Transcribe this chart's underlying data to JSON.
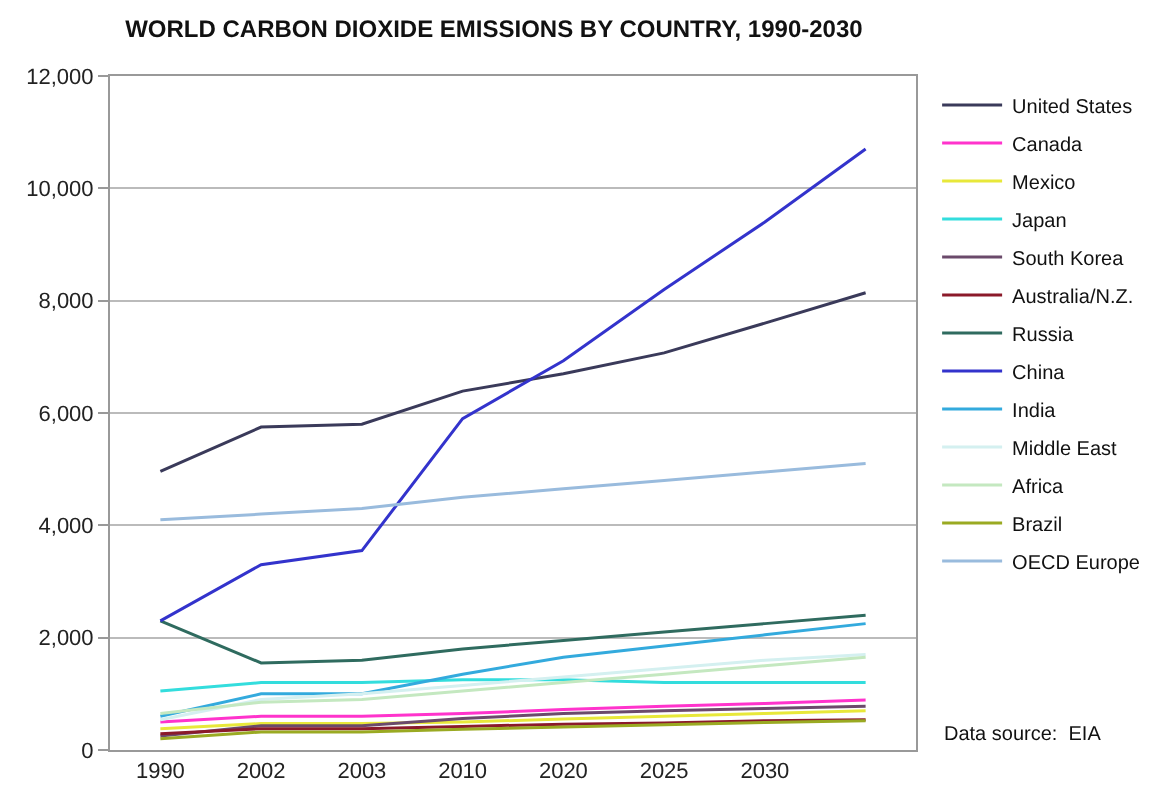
{
  "chart_data": {
    "type": "line",
    "title": "WORLD CARBON DIOXIDE EMISSIONS BY COUNTRY, 1990-2030",
    "categories": [
      "1990",
      "2002",
      "2003",
      "2010",
      "2020",
      "2025",
      "2030",
      null
    ],
    "ylim": [
      0,
      12000
    ],
    "yticks": [
      {
        "value": 0,
        "label": "0"
      },
      {
        "value": 2000,
        "label": "2,000"
      },
      {
        "value": 4000,
        "label": "4,000"
      },
      {
        "value": 6000,
        "label": "6,000"
      },
      {
        "value": 8000,
        "label": "8,000"
      },
      {
        "value": 10000,
        "label": "10,000"
      },
      {
        "value": 12000,
        "label": "12,000"
      }
    ],
    "grid": "y",
    "legend": "right",
    "marker": "none",
    "line_style": "solid",
    "annotations": [
      "Data source:  EIA"
    ],
    "series": [
      {
        "name": "United States",
        "color": "#3a3a5a",
        "values": [
          4960,
          5750,
          5800,
          6390,
          6700,
          7070,
          7600,
          8140
        ]
      },
      {
        "name": "Canada",
        "color": "#ff33cc",
        "values": [
          500,
          600,
          600,
          650,
          720,
          780,
          830,
          890
        ]
      },
      {
        "name": "Mexico",
        "color": "#e8e83a",
        "values": [
          380,
          470,
          470,
          500,
          550,
          600,
          650,
          700
        ]
      },
      {
        "name": "Japan",
        "color": "#33dddd",
        "values": [
          1050,
          1200,
          1200,
          1250,
          1250,
          1200,
          1200,
          1200
        ]
      },
      {
        "name": "South Korea",
        "color": "#6b4a6b",
        "values": [
          250,
          430,
          430,
          560,
          650,
          700,
          740,
          780
        ]
      },
      {
        "name": "Australia/N.Z.",
        "color": "#8b1a2a",
        "values": [
          290,
          380,
          380,
          420,
          460,
          480,
          520,
          540
        ]
      },
      {
        "name": "Russia",
        "color": "#2f6b5f",
        "values": [
          2300,
          1550,
          1600,
          1800,
          1950,
          2100,
          2250,
          2400
        ]
      },
      {
        "name": "China",
        "color": "#3333cc",
        "values": [
          2300,
          3300,
          3550,
          5900,
          6930,
          8200,
          9400,
          10700
        ]
      },
      {
        "name": "India",
        "color": "#33aadd",
        "values": [
          600,
          1000,
          1000,
          1350,
          1650,
          1850,
          2050,
          2250
        ]
      },
      {
        "name": "Middle East",
        "color": "#d4f0f0",
        "values": [
          540,
          900,
          1000,
          1150,
          1300,
          1450,
          1600,
          1700
        ]
      },
      {
        "name": "Africa",
        "color": "#c4e8c0",
        "values": [
          650,
          850,
          900,
          1050,
          1200,
          1350,
          1500,
          1650
        ]
      },
      {
        "name": "Brazil",
        "color": "#9aaa22",
        "values": [
          200,
          320,
          320,
          370,
          410,
          450,
          490,
          520
        ]
      },
      {
        "name": "OECD Europe",
        "color": "#99bbdd",
        "values": [
          4100,
          4200,
          4300,
          4500,
          4650,
          4800,
          4950,
          5100
        ]
      }
    ]
  }
}
